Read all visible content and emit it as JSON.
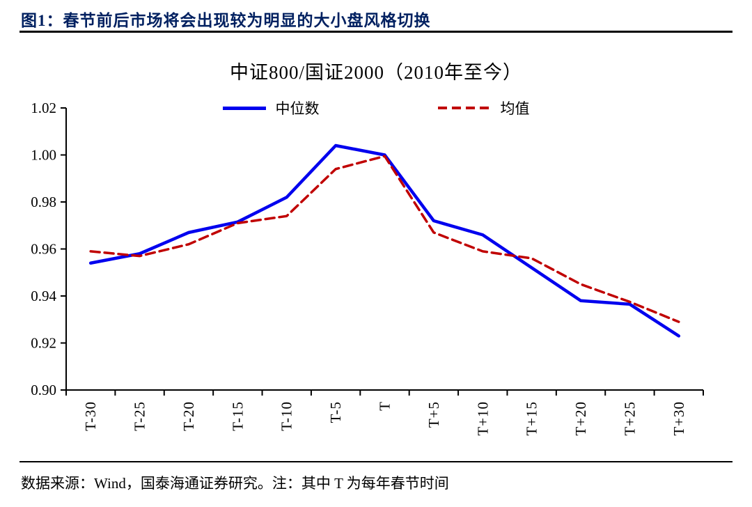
{
  "figure": {
    "title": "图1：春节前后市场将会出现较为明显的大小盘风格切换"
  },
  "chart_data": {
    "type": "line",
    "title": "中证800/国证2000（2010年至今）",
    "categories": [
      "T-30",
      "T-25",
      "T-20",
      "T-15",
      "T-10",
      "T-5",
      "T",
      "T+5",
      "T+10",
      "T+15",
      "T+20",
      "T+25",
      "T+30"
    ],
    "series": [
      {
        "name": "中位数",
        "style": "solid",
        "color": "#0000EE",
        "values": [
          0.954,
          0.958,
          0.967,
          0.9715,
          0.982,
          1.004,
          1.0,
          0.972,
          0.966,
          0.952,
          0.938,
          0.9365,
          0.923
        ]
      },
      {
        "name": "均值",
        "style": "dashed",
        "color": "#C00000",
        "values": [
          0.959,
          0.957,
          0.962,
          0.971,
          0.974,
          0.994,
          0.9995,
          0.967,
          0.959,
          0.956,
          0.945,
          0.9375,
          0.929
        ]
      }
    ],
    "ylim": [
      0.9,
      1.02
    ],
    "ytick_step": 0.02,
    "yticks": [
      "0.90",
      "0.92",
      "0.94",
      "0.96",
      "0.98",
      "1.00",
      "1.02"
    ],
    "grid": false,
    "legend_position": "top-center"
  },
  "colors": {
    "figure_title": "#002060",
    "axis": "#000000",
    "median_line": "#0000EE",
    "mean_line": "#C00000"
  },
  "footer": {
    "text": "数据来源：Wind，国泰海通证券研究。注：其中 T 为每年春节时间"
  }
}
